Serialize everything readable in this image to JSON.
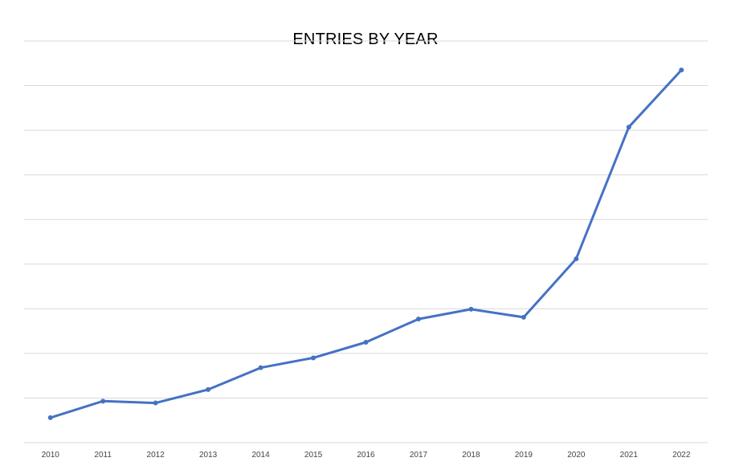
{
  "chart_data": {
    "type": "line",
    "title": "ENTRIES BY YEAR",
    "xlabel": "",
    "ylabel": "",
    "categories": [
      "2010",
      "2011",
      "2012",
      "2013",
      "2014",
      "2015",
      "2016",
      "2017",
      "2018",
      "2019",
      "2020",
      "2021",
      "2022"
    ],
    "series": [
      {
        "values": [
          0.56,
          0.93,
          0.89,
          1.19,
          1.68,
          1.9,
          2.25,
          2.77,
          2.99,
          2.81,
          4.12,
          7.07,
          8.35
        ],
        "color": "#4472C4"
      }
    ],
    "ylim": [
      0,
      9
    ],
    "y_gridlines": 9,
    "grid": true,
    "legend": "none",
    "y_axis_labels_shown": false
  }
}
